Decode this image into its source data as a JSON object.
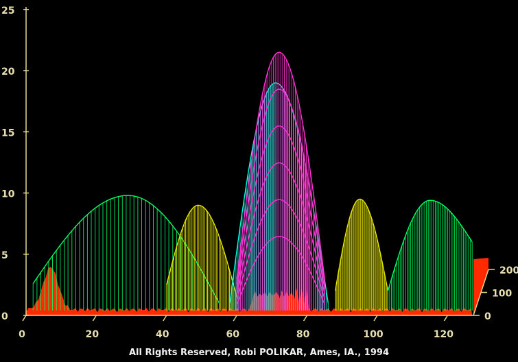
{
  "chart_data": {
    "type": "surface-3d",
    "title": "",
    "xlabel": "",
    "ylabel": "",
    "zlabel": "",
    "x_range": [
      0,
      130
    ],
    "y_range": [
      0,
      25
    ],
    "z_range": [
      0,
      200
    ],
    "x_ticks": [
      0,
      20,
      40,
      60,
      80,
      100,
      120
    ],
    "y_ticks": [
      0,
      5,
      10,
      15,
      20,
      25
    ],
    "z_ticks": [
      0,
      100,
      200
    ],
    "grid": false,
    "series": [
      {
        "color": "#00ff60",
        "envelope": [
          {
            "x": 2,
            "y": 2.6
          },
          {
            "x": 29,
            "y": 9.8
          },
          {
            "x": 55,
            "y": 1.0
          }
        ]
      },
      {
        "color": "#e6e600",
        "envelope": [
          {
            "x": 40,
            "y": 2.5
          },
          {
            "x": 49,
            "y": 9.0
          },
          {
            "x": 60,
            "y": 1.5
          }
        ]
      },
      {
        "color": "#00ffe0",
        "envelope": [
          {
            "x": 58,
            "y": 1.0
          },
          {
            "x": 71,
            "y": 19.0
          },
          {
            "x": 86,
            "y": 1.0
          }
        ]
      },
      {
        "color": "#ff30d0",
        "envelope": [
          {
            "x": 60,
            "y": 3.0
          },
          {
            "x": 72,
            "y": 21.5
          },
          {
            "x": 85,
            "y": 3.0
          }
        ]
      },
      {
        "color": "#e6e600",
        "envelope": [
          {
            "x": 88,
            "y": 2.0
          },
          {
            "x": 95,
            "y": 9.5
          },
          {
            "x": 103,
            "y": 2.0
          }
        ]
      },
      {
        "color": "#00ff60",
        "envelope": [
          {
            "x": 103,
            "y": 2.0
          },
          {
            "x": 115,
            "y": 9.4
          },
          {
            "x": 127,
            "y": 6.0
          }
        ]
      }
    ],
    "credit": "All Rights Reserved, Robi POLIKAR, Ames, IA., 1994"
  }
}
